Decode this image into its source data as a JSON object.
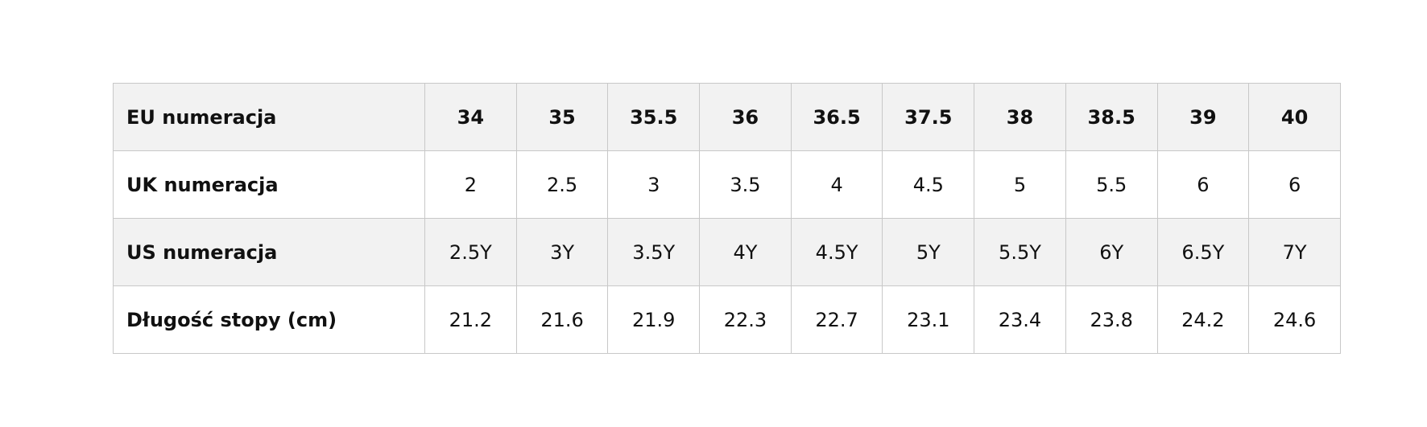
{
  "table": {
    "rows": [
      {
        "label": "EU numeracja",
        "values": [
          "34",
          "35",
          "35.5",
          "36",
          "36.5",
          "37.5",
          "38",
          "38.5",
          "39",
          "40"
        ]
      },
      {
        "label": "UK numeracja",
        "values": [
          "2",
          "2.5",
          "3",
          "3.5",
          "4",
          "4.5",
          "5",
          "5.5",
          "6",
          "6"
        ]
      },
      {
        "label": "US numeracja",
        "values": [
          "2.5Y",
          "3Y",
          "3.5Y",
          "4Y",
          "4.5Y",
          "5Y",
          "5.5Y",
          "6Y",
          "6.5Y",
          "7Y"
        ]
      },
      {
        "label": "Długość stopy (cm)",
        "values": [
          "21.2",
          "21.6",
          "21.9",
          "22.3",
          "22.7",
          "23.1",
          "23.4",
          "23.8",
          "24.2",
          "24.6"
        ]
      }
    ],
    "colors": {
      "shaded_row": "#f2f2f2",
      "border": "#c8c8c8",
      "text": "#111111"
    }
  }
}
